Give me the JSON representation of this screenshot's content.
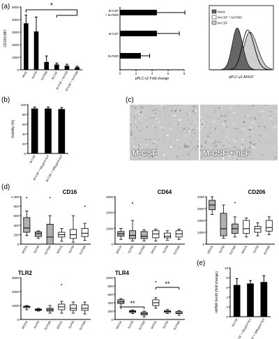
{
  "panel_labels": {
    "a": "(a)",
    "b": "(b)",
    "c": "(c)",
    "d": "(d)",
    "e": "(e)"
  },
  "colors": {
    "bar": "#000000",
    "grey_box": "#b0b0b0",
    "white_box": "#ffffff",
    "line": "#000000",
    "hist_mock": "#666666",
    "hist_mcsf_hlf": "#ffffff",
    "hist_mcsf": "#cfcfcf",
    "micro_bg": "#c9c9c9",
    "micro_text": "#ffffff"
  },
  "micrographs": [
    {
      "label": "M-CSF"
    },
    {
      "label": "M-CSF + hLF"
    }
  ],
  "chart_data": [
    {
      "id": "a1",
      "type": "bar",
      "categories": [
        "Mock",
        "hLF50",
        "hLF500",
        "M-CSF",
        "M-CSF + hLF50",
        "M-CSF + hLF500"
      ],
      "values": [
        3700,
        3050,
        620,
        420,
        320,
        200
      ],
      "errors": [
        650,
        1150,
        480,
        120,
        120,
        80
      ],
      "ylabel": "CD115 MFI",
      "ylim": [
        0,
        5000
      ],
      "yticks": [
        0,
        1000,
        2000,
        3000,
        4000,
        5000
      ],
      "annotation": "*"
    },
    {
      "id": "a2",
      "type": "bar",
      "orientation": "horizontal",
      "categories": [
        "M-CSF + hLF500",
        "M-CSF",
        "hLF500"
      ],
      "values": [
        4.6,
        4.6,
        2.6
      ],
      "errors": [
        3.5,
        2.8,
        1.1
      ],
      "xlabel": "pPLC-γ2 Fold change",
      "xlim": [
        0,
        8
      ],
      "xticks": [
        0,
        2,
        4,
        6,
        8
      ]
    },
    {
      "id": "a3",
      "type": "area",
      "xlabel": "pPLC-γ2 AF647",
      "series": [
        {
          "name": "Mock",
          "color": "#666666"
        },
        {
          "name": "M-CSF + hLF500",
          "color": "#ffffff"
        },
        {
          "name": "M-CSF",
          "color": "#cfcfcf"
        }
      ]
    },
    {
      "id": "b",
      "type": "bar",
      "categories": [
        "M-CSF",
        "M-CSF + 50μg/ml hLF",
        "M-CSF + 500μg/ml hLF"
      ],
      "values": [
        92,
        92,
        91
      ],
      "errors": [
        3,
        3,
        3
      ],
      "ylabel": "Viability (%)",
      "ylim": [
        0,
        100
      ],
      "yticks": [
        0,
        20,
        40,
        60,
        80,
        100
      ]
    },
    {
      "id": "d1",
      "type": "box",
      "title": "CD16",
      "categories": [
        "MOCK",
        "hLF50",
        "hLF500",
        "MOCK",
        "hLF50",
        "hLF500"
      ],
      "fills": [
        "grey",
        "grey",
        "grey",
        "white",
        "white",
        "white"
      ],
      "boxes": [
        {
          "min": 180,
          "q1": 250,
          "med": 340,
          "q3": 560,
          "max": 700,
          "out": [
            980
          ]
        },
        {
          "min": 120,
          "q1": 160,
          "med": 220,
          "q3": 260,
          "max": 280,
          "out": []
        },
        {
          "min": 0,
          "q1": 0,
          "med": 150,
          "q3": 420,
          "max": 600,
          "out": [
            980
          ]
        },
        {
          "min": 60,
          "q1": 150,
          "med": 200,
          "q3": 250,
          "max": 330,
          "out": []
        },
        {
          "min": 40,
          "q1": 120,
          "med": 200,
          "q3": 310,
          "max": 600,
          "out": []
        },
        {
          "min": 80,
          "q1": 160,
          "med": 230,
          "q3": 330,
          "max": 440,
          "out": [
            800
          ]
        }
      ],
      "ylim": [
        0,
        1000
      ],
      "yticks": [
        0,
        200,
        400,
        600,
        800,
        1000
      ],
      "yticklabels": [
        "0",
        "200",
        "400",
        "600",
        "800",
        "1 000"
      ]
    },
    {
      "id": "d2",
      "type": "box",
      "title": "CD64",
      "categories": [
        "MOCK",
        "hLF50",
        "hLF500",
        "MOCK",
        "hLF50",
        "hLF500"
      ],
      "fills": [
        "grey",
        "grey",
        "grey",
        "white",
        "white",
        "white"
      ],
      "boxes": [
        {
          "min": 300,
          "q1": 500,
          "med": 650,
          "q3": 800,
          "max": 1000,
          "out": []
        },
        {
          "min": 200,
          "q1": 350,
          "med": 550,
          "q3": 850,
          "max": 1500,
          "out": [
            2600
          ]
        },
        {
          "min": 200,
          "q1": 350,
          "med": 500,
          "q3": 800,
          "max": 900,
          "out": []
        },
        {
          "min": 200,
          "q1": 400,
          "med": 650,
          "q3": 850,
          "max": 950,
          "out": []
        },
        {
          "min": 250,
          "q1": 400,
          "med": 500,
          "q3": 700,
          "max": 850,
          "out": []
        },
        {
          "min": 300,
          "q1": 450,
          "med": 650,
          "q3": 850,
          "max": 950,
          "out": []
        }
      ],
      "ylim": [
        0,
        3000
      ],
      "yticks": [
        0,
        1000,
        2000,
        3000
      ],
      "yticklabels": [
        "0",
        "1000",
        "2000",
        "3000"
      ]
    },
    {
      "id": "d3",
      "type": "box",
      "title": "CD206",
      "categories": [
        "MOCK",
        "hLF50",
        "hLF500",
        "MOCK",
        "hLF50",
        "hLF500"
      ],
      "fills": [
        "grey",
        "grey",
        "grey",
        "white",
        "white",
        "white"
      ],
      "boxes": [
        {
          "min": 2500,
          "q1": 2900,
          "med": 3300,
          "q3": 3700,
          "max": 4000,
          "out": []
        },
        {
          "min": 500,
          "q1": 700,
          "med": 1300,
          "q3": 2600,
          "max": 3300,
          "out": []
        },
        {
          "min": 600,
          "q1": 900,
          "med": 1300,
          "q3": 1700,
          "max": 2300,
          "out": [
            3500
          ]
        },
        {
          "min": 600,
          "q1": 900,
          "med": 1300,
          "q3": 2000,
          "max": 2200,
          "out": []
        },
        {
          "min": 700,
          "q1": 1000,
          "med": 1300,
          "q3": 1500,
          "max": 1800,
          "out": []
        },
        {
          "min": 800,
          "q1": 1100,
          "med": 1400,
          "q3": 2000,
          "max": 2300,
          "out": []
        }
      ],
      "ylim": [
        0,
        4000
      ],
      "yticks": [
        0,
        1000,
        2000,
        3000,
        4000
      ],
      "yticklabels": [
        "0",
        "1000",
        "2000",
        "3000",
        "4000"
      ]
    },
    {
      "id": "d4",
      "type": "box",
      "title": "TLR2",
      "categories": [
        "MOCK",
        "hLF50",
        "hLF500",
        "MOCK",
        "hLF50",
        "hLF500"
      ],
      "fills": [
        "grey",
        "grey",
        "grey",
        "white",
        "white",
        "white"
      ],
      "boxes": [
        {
          "min": 700,
          "q1": 850,
          "med": 920,
          "q3": 950,
          "max": 1000,
          "out": []
        },
        {
          "min": 600,
          "q1": 650,
          "med": 700,
          "q3": 750,
          "max": 800,
          "out": []
        },
        {
          "min": 450,
          "q1": 600,
          "med": 700,
          "q3": 800,
          "max": 1000,
          "out": []
        },
        {
          "min": 450,
          "q1": 700,
          "med": 900,
          "q3": 1100,
          "max": 1300,
          "out": [
            2500
          ]
        },
        {
          "min": 450,
          "q1": 650,
          "med": 800,
          "q3": 1050,
          "max": 1250,
          "out": []
        },
        {
          "min": 400,
          "q1": 650,
          "med": 800,
          "q3": 1050,
          "max": 1250,
          "out": []
        }
      ],
      "ylim": [
        0,
        3000
      ],
      "yticks": [
        0,
        1000,
        2000,
        3000
      ],
      "yticklabels": [
        "0",
        "1000",
        "2000",
        "3000"
      ]
    },
    {
      "id": "d5",
      "type": "box",
      "title": "TLR4",
      "categories": [
        "MOCK",
        "hLF50",
        "hLF500",
        "MOCK",
        "hLF50",
        "hLF500"
      ],
      "fills": [
        "grey",
        "grey",
        "grey",
        "white",
        "white",
        "white"
      ],
      "boxes": [
        {
          "min": 300,
          "q1": 380,
          "med": 420,
          "q3": 470,
          "max": 500,
          "out": []
        },
        {
          "min": 140,
          "q1": 170,
          "med": 190,
          "q3": 210,
          "max": 230,
          "out": []
        },
        {
          "min": 60,
          "q1": 110,
          "med": 140,
          "q3": 170,
          "max": 200,
          "out": []
        },
        {
          "min": 270,
          "q1": 330,
          "med": 400,
          "q3": 470,
          "max": 520,
          "out": [
            900
          ]
        },
        {
          "min": 140,
          "q1": 170,
          "med": 190,
          "q3": 210,
          "max": 240,
          "out": []
        },
        {
          "min": 100,
          "q1": 140,
          "med": 160,
          "q3": 190,
          "max": 210,
          "out": []
        }
      ],
      "ylim": [
        0,
        1000
      ],
      "yticks": [
        0,
        200,
        400,
        600,
        800,
        1000
      ],
      "yticklabels": [
        "0",
        "200",
        "400",
        "600",
        "800",
        "1000"
      ],
      "annotations": [
        "**",
        "**"
      ]
    },
    {
      "id": "e",
      "type": "bar",
      "categories": [
        "M-CSF",
        "M-CSF + 50μg/ml hLF",
        "M-CSF + 500μg/ml hLF"
      ],
      "values": [
        6.5,
        6.8,
        7.1
      ],
      "errors": [
        1.3,
        0.6,
        1.3
      ],
      "ylabel": "mRNA VentX (fold change)",
      "ylim": [
        0,
        10
      ],
      "yticks": [
        0,
        2,
        4,
        6,
        8,
        10
      ]
    }
  ]
}
